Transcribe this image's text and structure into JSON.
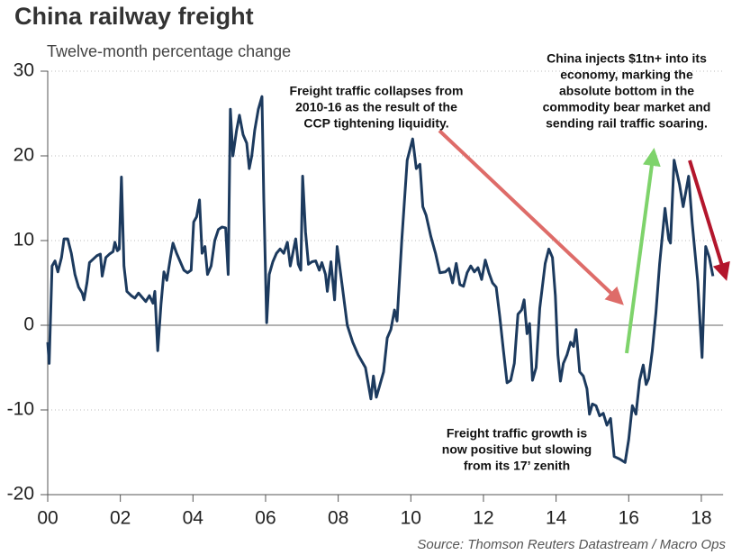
{
  "chart_data": {
    "type": "line",
    "title": "China railway freight",
    "subtitle": "Twelve-month percentage change",
    "source": "Source: Thomson Reuters Datastream / Macro Ops",
    "xlim": [
      2000,
      2018.6
    ],
    "xticks": [
      {
        "value": 2000,
        "label": "00"
      },
      {
        "value": 2002,
        "label": "02"
      },
      {
        "value": 2004,
        "label": "04"
      },
      {
        "value": 2006,
        "label": "06"
      },
      {
        "value": 2008,
        "label": "08"
      },
      {
        "value": 2010,
        "label": "10"
      },
      {
        "value": 2012,
        "label": "12"
      },
      {
        "value": 2014,
        "label": "14"
      },
      {
        "value": 2016,
        "label": "16"
      },
      {
        "value": 2018,
        "label": "18"
      }
    ],
    "ylim": [
      -20,
      30
    ],
    "yticks": [
      -20,
      -10,
      0,
      10,
      20,
      30
    ],
    "grid": true,
    "annotations": [
      {
        "lines": [
          "Freight traffic collapses from",
          "2010-16 as the result of the",
          "CCP tightening liquidity."
        ]
      },
      {
        "lines": [
          "China injects $1tn+ into its",
          "economy, marking the",
          "absolute bottom in the",
          "commodity bear market and",
          "sending rail traffic soaring."
        ]
      },
      {
        "lines": [
          "Freight traffic growth is",
          "now positive but slowing",
          "from its 17’ zenith"
        ]
      }
    ],
    "series": [
      {
        "name": "Twelve-month percentage change",
        "color": "#1c3a5e",
        "x": [
          2000.0,
          2000.04,
          2000.12,
          2000.2,
          2000.28,
          2000.38,
          2000.45,
          2000.55,
          2000.65,
          2000.75,
          2000.85,
          2000.95,
          2001.0,
          2001.08,
          2001.15,
          2001.25,
          2001.35,
          2001.45,
          2001.5,
          2001.6,
          2001.7,
          2001.8,
          2001.85,
          2001.92,
          2001.97,
          2002.03,
          2002.1,
          2002.18,
          2002.3,
          2002.4,
          2002.5,
          2002.6,
          2002.7,
          2002.8,
          2002.9,
          2002.95,
          2003.03,
          2003.12,
          2003.2,
          2003.28,
          2003.38,
          2003.45,
          2003.55,
          2003.65,
          2003.75,
          2003.85,
          2003.95,
          2004.02,
          2004.1,
          2004.18,
          2004.25,
          2004.33,
          2004.4,
          2004.5,
          2004.6,
          2004.7,
          2004.8,
          2004.9,
          2004.97,
          2005.03,
          2005.1,
          2005.2,
          2005.28,
          2005.38,
          2005.48,
          2005.55,
          2005.62,
          2005.7,
          2005.8,
          2005.9,
          2005.95,
          2006.03,
          2006.1,
          2006.2,
          2006.3,
          2006.4,
          2006.5,
          2006.6,
          2006.68,
          2006.75,
          2006.83,
          2006.9,
          2006.97,
          2007.02,
          2007.1,
          2007.18,
          2007.28,
          2007.38,
          2007.48,
          2007.55,
          2007.65,
          2007.7,
          2007.8,
          2007.9,
          2007.97,
          2008.1,
          2008.25,
          2008.4,
          2008.55,
          2008.75,
          2008.9,
          2008.97,
          2009.05,
          2009.15,
          2009.25,
          2009.35,
          2009.45,
          2009.55,
          2009.62,
          2009.75,
          2009.9,
          2010.05,
          2010.15,
          2010.25,
          2010.33,
          2010.42,
          2010.55,
          2010.68,
          2010.8,
          2010.95,
          2011.05,
          2011.15,
          2011.25,
          2011.35,
          2011.45,
          2011.55,
          2011.65,
          2011.75,
          2011.85,
          2011.95,
          2012.05,
          2012.15,
          2012.25,
          2012.35,
          2012.45,
          2012.55,
          2012.65,
          2012.75,
          2012.85,
          2012.95,
          2013.05,
          2013.12,
          2013.2,
          2013.27,
          2013.35,
          2013.45,
          2013.55,
          2013.7,
          2013.8,
          2013.9,
          2013.98,
          2014.05,
          2014.12,
          2014.2,
          2014.3,
          2014.4,
          2014.48,
          2014.55,
          2014.65,
          2014.75,
          2014.85,
          2014.92,
          2015.0,
          2015.1,
          2015.2,
          2015.3,
          2015.4,
          2015.5,
          2015.6,
          2015.75,
          2015.9,
          2016.0,
          2016.1,
          2016.2,
          2016.3,
          2016.4,
          2016.48,
          2016.55,
          2016.65,
          2016.75,
          2016.85,
          2017.0,
          2017.1,
          2017.15,
          2017.25,
          2017.4,
          2017.5,
          2017.65,
          2017.75,
          2017.9,
          2018.02,
          2018.12,
          2018.22,
          2018.32
        ],
        "values": [
          -2,
          -4.5,
          7,
          7.6,
          6.3,
          8,
          10.2,
          10.2,
          8.5,
          6,
          4.5,
          3.8,
          3,
          5,
          7.4,
          7.8,
          8.2,
          8.4,
          5.8,
          8,
          8.4,
          8.7,
          9.8,
          8.8,
          9,
          17.5,
          7,
          4,
          3.5,
          3.2,
          3.8,
          3.3,
          2.8,
          3.5,
          2.6,
          4,
          -3,
          2.5,
          6.3,
          5.3,
          8,
          9.7,
          8.5,
          7.5,
          6.5,
          6.2,
          6.5,
          12.2,
          12.8,
          14.8,
          8.5,
          9.3,
          6,
          7,
          10,
          11.3,
          11.6,
          11.5,
          6,
          25.5,
          20,
          23,
          24.8,
          22.5,
          21.5,
          18.5,
          20,
          23,
          25.5,
          27,
          15,
          0.3,
          6,
          7.5,
          8.5,
          9,
          8.5,
          9.8,
          7,
          8.5,
          10.2,
          7.2,
          6.5,
          17.6,
          11,
          7.2,
          7.5,
          7.6,
          6.5,
          7.4,
          6,
          4,
          7.5,
          3,
          9.3,
          5,
          0,
          -2,
          -3.5,
          -5,
          -8.7,
          -6,
          -8.5,
          -7,
          -5.5,
          -1.5,
          -0.5,
          1.8,
          0.5,
          10,
          19.5,
          22,
          18.5,
          19,
          14,
          13,
          10.5,
          8.5,
          6.2,
          6.3,
          6.7,
          5,
          7.3,
          4.8,
          4.6,
          6.2,
          7,
          6.3,
          6.8,
          5.4,
          7.7,
          6.2,
          5,
          4.5,
          1,
          -3,
          -6.8,
          -6.5,
          -4.5,
          1.3,
          1.8,
          3,
          -1,
          0.2,
          -6.5,
          -5,
          2,
          7.3,
          9,
          8,
          3.5,
          -3.5,
          -6.6,
          -4.5,
          -3.5,
          -2,
          -2.5,
          -0.5,
          -5.5,
          -6,
          -7.5,
          -10.5,
          -9.3,
          -9.5,
          -10.7,
          -10.4,
          -11.8,
          -11,
          -15.5,
          -15.8,
          -16.2,
          -13.5,
          -9.5,
          -10.5,
          -6.5,
          -4.7,
          -7,
          -6.3,
          -3,
          1.5,
          7.2,
          13.8,
          10.2,
          9.7,
          19.5,
          16.6,
          14,
          17.6,
          12,
          5.2,
          -3.8,
          9.3,
          8,
          5.8
        ]
      }
    ]
  }
}
